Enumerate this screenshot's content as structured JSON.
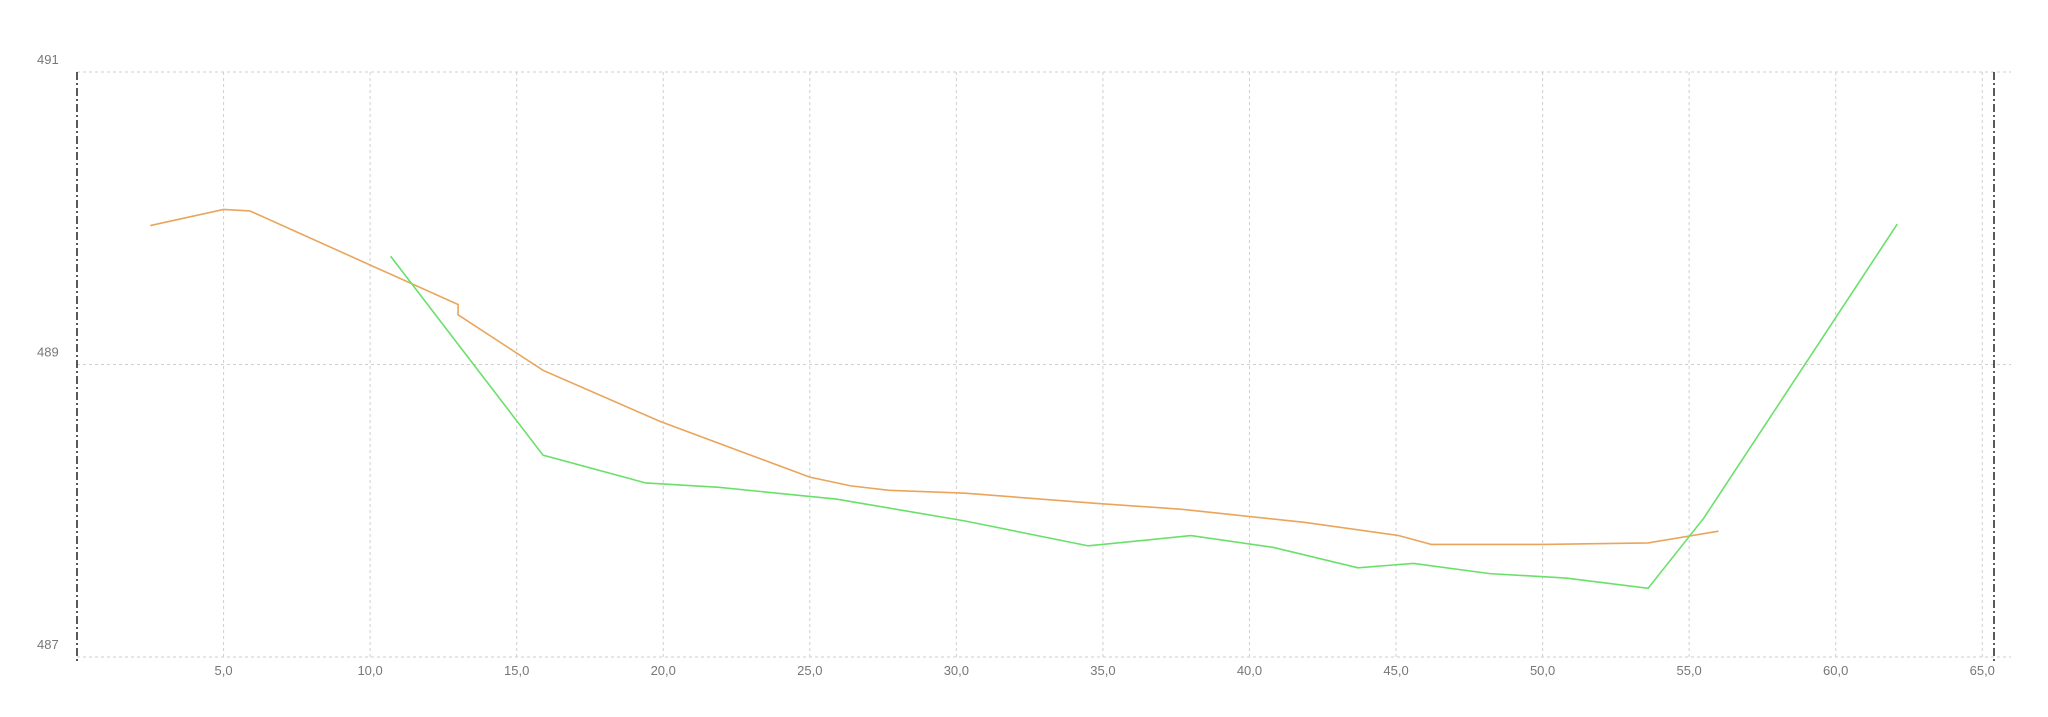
{
  "chart_data": {
    "type": "line",
    "series": [
      {
        "color": "#e9a55c",
        "x": [
          2.5,
          5.0,
          5.9,
          13.0,
          13.0,
          15.9,
          19.9,
          25.0,
          26.4,
          27.7,
          30.3,
          34.8,
          37.7,
          41.9,
          45.1,
          46.2,
          50.0,
          53.6,
          56.0
        ],
        "values": [
          489.95,
          490.06,
          490.05,
          489.41,
          489.34,
          488.96,
          488.61,
          488.23,
          488.17,
          488.14,
          488.12,
          488.05,
          488.01,
          487.92,
          487.83,
          487.77,
          487.77,
          487.78,
          487.86
        ]
      },
      {
        "color": "#6ae06a",
        "x": [
          10.7,
          15.9,
          19.4,
          21.9,
          25.9,
          30.3,
          34.5,
          38.0,
          40.8,
          43.7,
          45.6,
          48.2,
          50.8,
          53.6,
          55.5,
          62.1
        ],
        "values": [
          489.74,
          488.38,
          488.19,
          488.16,
          488.08,
          487.93,
          487.76,
          487.83,
          487.75,
          487.61,
          487.64,
          487.57,
          487.54,
          487.47,
          487.95,
          489.96
        ]
      }
    ],
    "xlim": [
      0,
      65.4
    ],
    "xticks": [
      {
        "value": 5,
        "label": "5,0"
      },
      {
        "value": 10,
        "label": "10,0"
      },
      {
        "value": 15,
        "label": "15,0"
      },
      {
        "value": 20,
        "label": "20,0"
      },
      {
        "value": 25,
        "label": "25,0"
      },
      {
        "value": 30,
        "label": "30,0"
      },
      {
        "value": 35,
        "label": "35,0"
      },
      {
        "value": 40,
        "label": "40,0"
      },
      {
        "value": 45,
        "label": "45,0"
      },
      {
        "value": 50,
        "label": "50,0"
      },
      {
        "value": 55,
        "label": "55,0"
      },
      {
        "value": 60,
        "label": "60,0"
      },
      {
        "value": 65,
        "label": "65,0"
      }
    ],
    "ylim": [
      487,
      491
    ],
    "yticks": [
      487,
      489,
      491
    ],
    "grid": true
  }
}
